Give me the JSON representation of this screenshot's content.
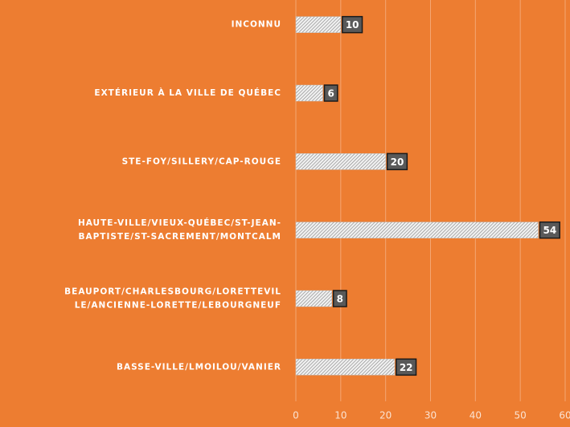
{
  "chart_data": {
    "type": "bar",
    "orientation": "horizontal",
    "categories": [
      "INCONNU",
      "EXTÉRIEUR À LA VILLE DE QUÉBEC",
      "STE-FOY/SILLERY/CAP-ROUGE",
      "HAUTE-VILLE/VIEUX-QUÉBEC/ST-JEAN-\nBAPTISTE/ST-SACREMENT/MONTCALM",
      "BEAUPORT/CHARLESBOURG/LORETTEVIL\nLE/ANCIENNE-LORETTE/LEBOURGNEUF",
      "BASSE-VILLE/LMOILOU/VANIER"
    ],
    "values": [
      10,
      6,
      20,
      54,
      8,
      22
    ],
    "color": "#d9d9d9",
    "xlim": [
      0,
      60
    ],
    "xticks": [
      0,
      10,
      20,
      30,
      40,
      50,
      60
    ],
    "grid": true
  }
}
